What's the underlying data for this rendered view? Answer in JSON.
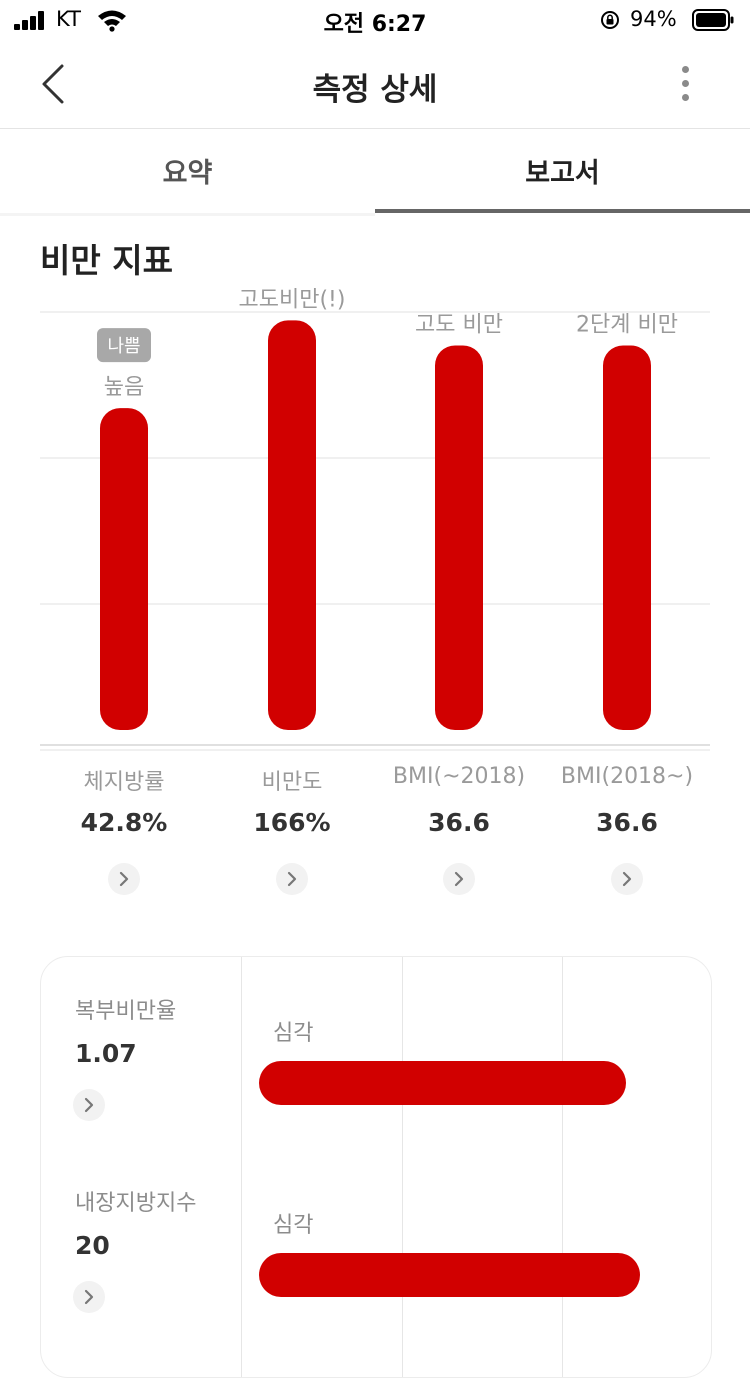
{
  "status_bar": {
    "carrier": "KT",
    "time": "오전 6:27",
    "battery_percent": "94%"
  },
  "header": {
    "title": "측정 상세",
    "back_icon": "chevron-left-icon",
    "more_icon": "more-vertical-icon"
  },
  "tabs": [
    {
      "label": "요약",
      "active": false
    },
    {
      "label": "보고서",
      "active": true
    }
  ],
  "section_title": "비만 지표",
  "colors": {
    "bar": "#d10000",
    "badge": "#a8a8a8",
    "grid": "#e6e6e6"
  },
  "chart_data": {
    "type": "bar",
    "categories": [
      "체지방률",
      "비만도",
      "BMI(~2018)",
      "BMI(2018~)"
    ],
    "values_display": [
      "42.8%",
      "166%",
      "36.6",
      "36.6"
    ],
    "level_fraction": [
      0.77,
      0.98,
      0.92,
      0.92
    ],
    "bar_labels": [
      "높음",
      "고도비만(!)",
      "고도 비만",
      "2단계 비만"
    ],
    "badge": {
      "index": 0,
      "text": "나쁨"
    },
    "grid": true,
    "gridlines": 4
  },
  "card": {
    "rows": [
      {
        "label": "복부비만율",
        "value": "1.07",
        "status": "심각",
        "level_fraction": 0.78
      },
      {
        "label": "내장지방지수",
        "value": "20",
        "status": "심각",
        "level_fraction": 0.81
      }
    ]
  }
}
